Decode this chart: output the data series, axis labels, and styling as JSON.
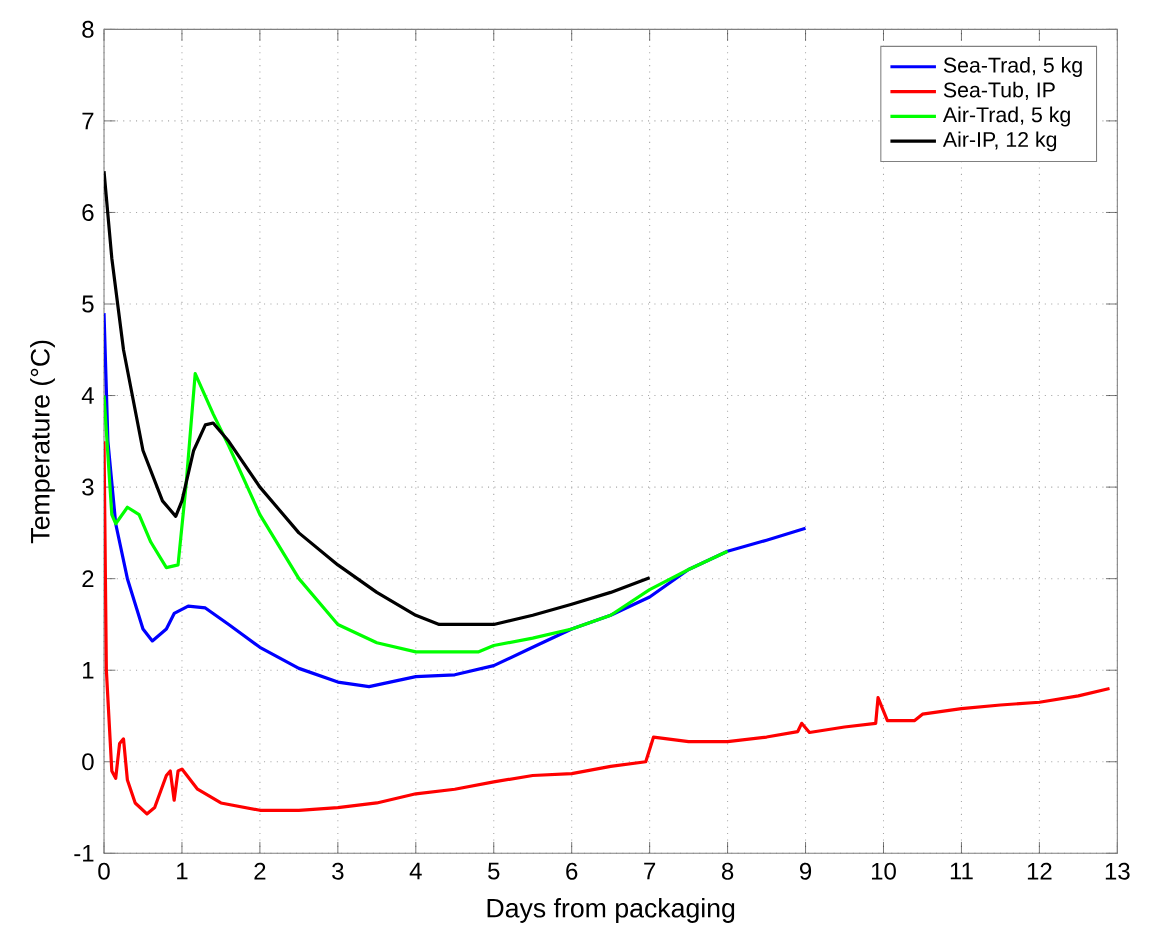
{
  "chart_data": {
    "type": "line",
    "xlabel": "Days from packaging",
    "ylabel": "Temperature (°C)",
    "xlim": [
      0,
      13
    ],
    "ylim": [
      -1,
      8
    ],
    "xticks": [
      0,
      1,
      2,
      3,
      4,
      5,
      6,
      7,
      8,
      9,
      10,
      11,
      12,
      13
    ],
    "yticks": [
      -1,
      0,
      1,
      2,
      3,
      4,
      5,
      6,
      7,
      8
    ],
    "grid": true,
    "legend": "top right",
    "line_style": "solid",
    "marker": "none",
    "series": [
      {
        "name": "Sea-Trad, 5 kg",
        "color": "#0000ff",
        "x": [
          0,
          0.05,
          0.15,
          0.3,
          0.5,
          0.62,
          0.8,
          0.9,
          1.08,
          1.3,
          1.6,
          2.0,
          2.5,
          3.0,
          3.4,
          4.0,
          4.5,
          5.0,
          5.5,
          6.0,
          6.5,
          7.0,
          7.5,
          8.0,
          8.5,
          9.0
        ],
        "values": [
          4.9,
          3.5,
          2.6,
          2.0,
          1.45,
          1.32,
          1.45,
          1.62,
          1.7,
          1.68,
          1.5,
          1.25,
          1.02,
          0.87,
          0.82,
          0.93,
          0.95,
          1.05,
          1.25,
          1.45,
          1.6,
          1.8,
          2.1,
          2.3,
          2.42,
          2.55
        ]
      },
      {
        "name": "Sea-Tub, IP",
        "color": "#ff0000",
        "x": [
          0,
          0.03,
          0.1,
          0.15,
          0.2,
          0.25,
          0.3,
          0.4,
          0.55,
          0.65,
          0.8,
          0.85,
          0.9,
          0.95,
          1.0,
          1.2,
          1.5,
          2.0,
          2.5,
          3.0,
          3.5,
          4.0,
          4.5,
          5.0,
          5.5,
          6.0,
          6.5,
          6.95,
          7.05,
          7.5,
          8.0,
          8.5,
          8.9,
          8.95,
          9.05,
          9.5,
          9.9,
          9.93,
          10.05,
          10.4,
          10.5,
          11.0,
          11.5,
          12.0,
          12.5,
          12.9
        ],
        "values": [
          3.5,
          1.0,
          -0.1,
          -0.18,
          0.2,
          0.25,
          -0.2,
          -0.45,
          -0.57,
          -0.5,
          -0.15,
          -0.1,
          -0.42,
          -0.1,
          -0.08,
          -0.3,
          -0.45,
          -0.53,
          -0.53,
          -0.5,
          -0.45,
          -0.35,
          -0.3,
          -0.22,
          -0.15,
          -0.13,
          -0.05,
          0.0,
          0.27,
          0.22,
          0.22,
          0.27,
          0.33,
          0.42,
          0.32,
          0.38,
          0.42,
          0.7,
          0.45,
          0.45,
          0.52,
          0.58,
          0.62,
          0.65,
          0.72,
          0.8
        ]
      },
      {
        "name": "Air-Trad, 5 kg",
        "color": "#00ff00",
        "x": [
          0,
          0.1,
          0.15,
          0.3,
          0.45,
          0.6,
          0.8,
          0.95,
          1.05,
          1.17,
          1.4,
          1.6,
          2.0,
          2.5,
          3.0,
          3.5,
          4.0,
          4.8,
          5.0,
          5.5,
          6.0,
          6.5,
          7.0,
          7.5,
          8.0
        ],
        "values": [
          4.0,
          2.7,
          2.6,
          2.78,
          2.7,
          2.4,
          2.12,
          2.15,
          3.0,
          4.24,
          3.8,
          3.45,
          2.7,
          2.0,
          1.5,
          1.3,
          1.2,
          1.2,
          1.27,
          1.35,
          1.45,
          1.6,
          1.88,
          2.1,
          2.3
        ]
      },
      {
        "name": "Air-IP, 12 kg",
        "color": "#000000",
        "x": [
          0,
          0.1,
          0.25,
          0.5,
          0.75,
          0.92,
          1.0,
          1.15,
          1.3,
          1.4,
          1.6,
          2.0,
          2.5,
          3.0,
          3.5,
          4.0,
          4.3,
          5.0,
          5.5,
          6.0,
          6.5,
          7.0
        ],
        "values": [
          6.45,
          5.5,
          4.5,
          3.4,
          2.85,
          2.68,
          2.85,
          3.4,
          3.68,
          3.7,
          3.5,
          3.0,
          2.5,
          2.15,
          1.85,
          1.6,
          1.5,
          1.5,
          1.6,
          1.72,
          1.85,
          2.01
        ]
      }
    ]
  }
}
